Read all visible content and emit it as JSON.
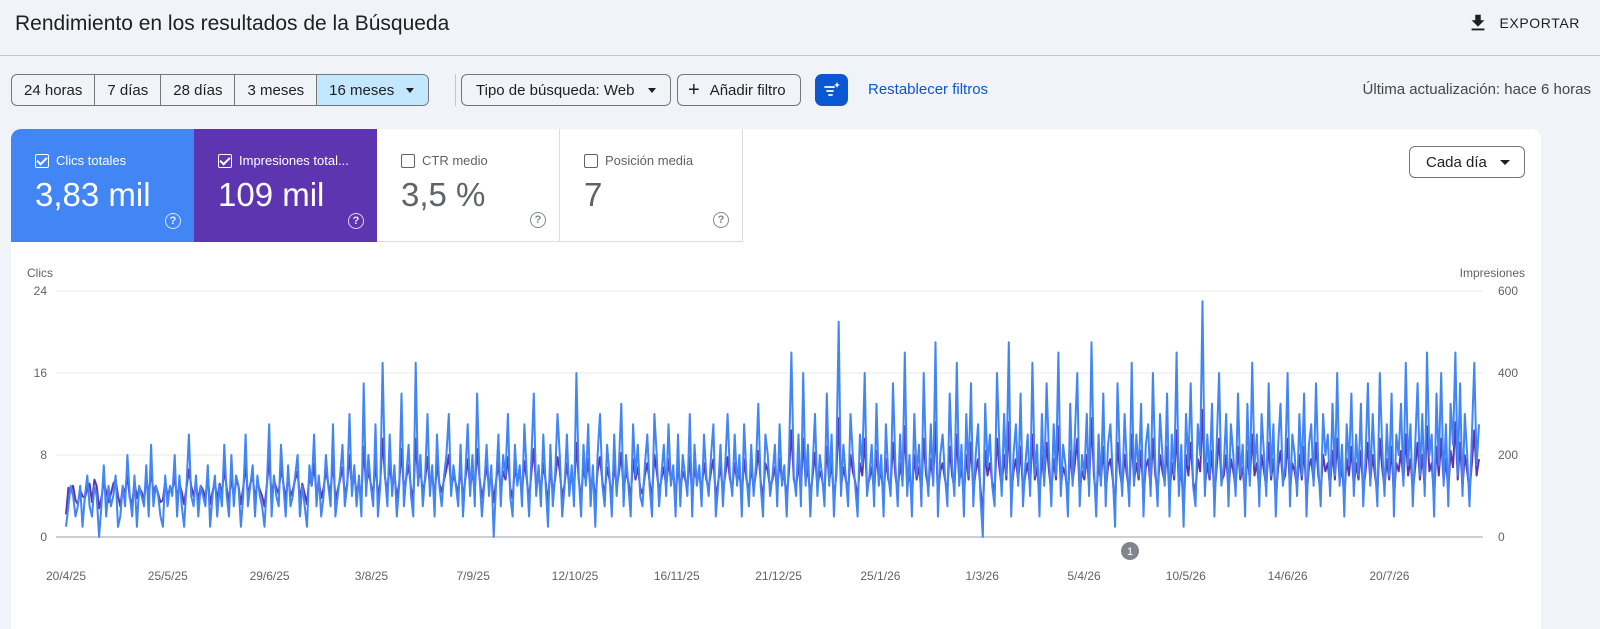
{
  "header": {
    "title": "Rendimiento en los resultados de la Búsqueda",
    "export_label": "EXPORTAR"
  },
  "toolbar": {
    "ranges": [
      "24 horas",
      "7 días",
      "28 días",
      "3 meses",
      "16 meses"
    ],
    "active_range": "16 meses",
    "search_type": "Tipo de búsqueda: Web",
    "add_filter": "Añadir filtro",
    "reset_filters": "Restablecer filtros",
    "last_update": "Última actualización: hace 6 horas"
  },
  "metrics": {
    "clicks": {
      "label": "Clics totales",
      "value": "3,83 mil",
      "checked": true,
      "color": "#4285f4"
    },
    "impressions": {
      "label": "Impresiones total...",
      "value": "109 mil",
      "checked": true,
      "color": "#5e35b1"
    },
    "ctr": {
      "label": "CTR medio",
      "value": "3,5 %",
      "checked": false
    },
    "position": {
      "label": "Posición media",
      "value": "7",
      "checked": false
    }
  },
  "frequency": {
    "label": "Cada día"
  },
  "chart_data": {
    "type": "line",
    "y_left": {
      "label": "Clics",
      "ticks": [
        "24",
        "16",
        "8",
        "0"
      ],
      "range": [
        0,
        24
      ]
    },
    "y_right": {
      "label": "Impresiones",
      "ticks": [
        "600",
        "400",
        "200",
        "0"
      ],
      "range": [
        0,
        600
      ]
    },
    "x_ticks": [
      "20/4/25",
      "25/5/25",
      "29/6/25",
      "3/8/25",
      "7/9/25",
      "12/10/25",
      "16/11/25",
      "21/12/25",
      "25/1/26",
      "1/3/26",
      "5/4/26",
      "10/5/26",
      "14/6/26",
      "20/7/26"
    ],
    "annotation": "1",
    "grid": true,
    "series": [
      {
        "name": "Clics totales",
        "axis": "left",
        "color": "#4285f4",
        "values": [
          1,
          3,
          5,
          4,
          2,
          3,
          5,
          1,
          4,
          6,
          3,
          2,
          5,
          4,
          0,
          3,
          7,
          2,
          5,
          3,
          4,
          6,
          1,
          2,
          5,
          3,
          8,
          4,
          2,
          6,
          1,
          5,
          4,
          3,
          7,
          2,
          9,
          3,
          5,
          4,
          2,
          1,
          6,
          3,
          5,
          4,
          8,
          2,
          6,
          3,
          1,
          5,
          10,
          4,
          3,
          6,
          2,
          5,
          4,
          3,
          7,
          1,
          4,
          6,
          2,
          5,
          3,
          9,
          4,
          2,
          8,
          3,
          6,
          5,
          1,
          4,
          10,
          3,
          5,
          7,
          2,
          6,
          4,
          3,
          1,
          5,
          11,
          2,
          6,
          4,
          3,
          9,
          5,
          2,
          7,
          3,
          4,
          6,
          8,
          2,
          5,
          3,
          1,
          7,
          5,
          10,
          3,
          6,
          2,
          4,
          8,
          5,
          3,
          11,
          2,
          4,
          6,
          9,
          3,
          5,
          12,
          4,
          7,
          3,
          6,
          2,
          15,
          4,
          8,
          5,
          3,
          11,
          2,
          5,
          17,
          6,
          3,
          10,
          4,
          7,
          2,
          5,
          14,
          3,
          6,
          9,
          4,
          2,
          17,
          5,
          8,
          3,
          6,
          12,
          4,
          7,
          2,
          10,
          5,
          3,
          6,
          8,
          12,
          4,
          7,
          5,
          3,
          9,
          2,
          6,
          11,
          4,
          8,
          3,
          14,
          6,
          2,
          5,
          9,
          4,
          7,
          0,
          5,
          10,
          3,
          8,
          6,
          12,
          4,
          2,
          9,
          5,
          7,
          3,
          11,
          6,
          2,
          8,
          14,
          4,
          7,
          3,
          10,
          5,
          1,
          9,
          3,
          6,
          12,
          8,
          2,
          5,
          10,
          4,
          7,
          3,
          16,
          6,
          2,
          9,
          5,
          11,
          3,
          7,
          1,
          8,
          12,
          5,
          3,
          9,
          6,
          2,
          10,
          4,
          7,
          13,
          3,
          8,
          5,
          2,
          11,
          6,
          9,
          4,
          3,
          7,
          10,
          5,
          2,
          12,
          8,
          3,
          6,
          9,
          4,
          11,
          5,
          7,
          2,
          10,
          3,
          8,
          6,
          4,
          12,
          2,
          9,
          5,
          7,
          3,
          10,
          6,
          4,
          8,
          11,
          2,
          5,
          9,
          3,
          7,
          12,
          6,
          4,
          10,
          5,
          8,
          2,
          11,
          6,
          3,
          9,
          4,
          7,
          13,
          5,
          2,
          10,
          8,
          4,
          6,
          9,
          3,
          11,
          5,
          7,
          2,
          8,
          18,
          6,
          4,
          10,
          3,
          16,
          5,
          9,
          2,
          7,
          12,
          4,
          8,
          6,
          3,
          14,
          5,
          10,
          2,
          7,
          21,
          4,
          9,
          6,
          3,
          12,
          8,
          5,
          2,
          10,
          7,
          16,
          4,
          6,
          9,
          3,
          13,
          5,
          8,
          2,
          11,
          6,
          4,
          15,
          7,
          3,
          10,
          5,
          18,
          4,
          8,
          2,
          12,
          6,
          9,
          3,
          16,
          7,
          4,
          11,
          5,
          19,
          2,
          8,
          10,
          6,
          3,
          14,
          7,
          4,
          17,
          5,
          9,
          2,
          12,
          6,
          15,
          3,
          8,
          11,
          4,
          0,
          13,
          7,
          10,
          5,
          3,
          16,
          9,
          4,
          12,
          6,
          19,
          2,
          8,
          11,
          5,
          14,
          3,
          7,
          10,
          4,
          17,
          6,
          9,
          2,
          12,
          5,
          15,
          8,
          3,
          11,
          6,
          18,
          4,
          9,
          7,
          2,
          13,
          5,
          10,
          16,
          3,
          8,
          6,
          12,
          4,
          19,
          7,
          2,
          10,
          5,
          14,
          3,
          9,
          11,
          6,
          1,
          15,
          8,
          4,
          12,
          7,
          3,
          17,
          5,
          10,
          6,
          13,
          2,
          9,
          11,
          4,
          16,
          7,
          3,
          12,
          8,
          5,
          14,
          2,
          10,
          6,
          18,
          4,
          9,
          1,
          12,
          7,
          15,
          5,
          3,
          11,
          8,
          23,
          4,
          10,
          6,
          13,
          2,
          9,
          16,
          5,
          7,
          12,
          3,
          11,
          8,
          4,
          14,
          6,
          9,
          2,
          13,
          5,
          17,
          7,
          10,
          3,
          12,
          8,
          4,
          15,
          6,
          11,
          2,
          9,
          13,
          5,
          7,
          16,
          3,
          10,
          8,
          4,
          12,
          6,
          14,
          2,
          9,
          11,
          5,
          15,
          7,
          3,
          12,
          8,
          10,
          4,
          13,
          6,
          16,
          5,
          9,
          2,
          11,
          7,
          14,
          4,
          10,
          6,
          13,
          3,
          8,
          15,
          5,
          12,
          7,
          3,
          16,
          9,
          4,
          11,
          6,
          14,
          2,
          10,
          8,
          13,
          5,
          17,
          7,
          11,
          3,
          9,
          15,
          6,
          12,
          4,
          18,
          8,
          10,
          2,
          14,
          7,
          16,
          5,
          11,
          3,
          13,
          9,
          18,
          6,
          15,
          4,
          12,
          8,
          3,
          10,
          17,
          7,
          11
        ]
      },
      {
        "name": "Impresiones totales",
        "axis": "right",
        "color": "#5e35b1",
        "values": [
          55,
          120,
          110,
          125,
          90,
          80,
          115,
          100,
          95,
          120,
          130,
          85,
          140,
          125,
          70,
          95,
          135,
          110,
          85,
          105,
          130,
          140,
          100,
          75,
          120,
          110,
          150,
          95,
          80,
          135,
          95,
          120,
          110,
          90,
          140,
          100,
          160,
          110,
          125,
          105,
          85,
          90,
          135,
          100,
          120,
          115,
          145,
          95,
          130,
          110,
          80,
          120,
          165,
          125,
          100,
          130,
          90,
          125,
          115,
          95,
          150,
          80,
          110,
          135,
          90,
          130,
          105,
          165,
          120,
          85,
          150,
          95,
          135,
          125,
          80,
          120,
          175,
          100,
          130,
          150,
          90,
          135,
          115,
          100,
          75,
          125,
          190,
          95,
          140,
          120,
          105,
          170,
          130,
          90,
          150,
          100,
          115,
          140,
          160,
          90,
          130,
          105,
          80,
          150,
          125,
          180,
          100,
          140,
          95,
          120,
          160,
          130,
          105,
          190,
          90,
          115,
          140,
          170,
          100,
          130,
          200,
          120,
          150,
          105,
          135,
          95,
          220,
          125,
          160,
          130,
          100,
          190,
          95,
          135,
          240,
          145,
          110,
          180,
          120,
          155,
          95,
          130,
          215,
          110,
          145,
          175,
          120,
          90,
          240,
          135,
          165,
          110,
          140,
          195,
          120,
          155,
          95,
          180,
          130,
          110,
          140,
          165,
          200,
          120,
          150,
          130,
          105,
          170,
          95,
          140,
          190,
          120,
          160,
          110,
          215,
          145,
          95,
          130,
          175,
          120,
          150,
          85,
          135,
          180,
          110,
          160,
          140,
          195,
          120,
          95,
          170,
          135,
          155,
          105,
          185,
          140,
          90,
          160,
          215,
          120,
          150,
          110,
          180,
          135,
          80,
          170,
          110,
          140,
          195,
          160,
          95,
          130,
          180,
          120,
          150,
          110,
          230,
          140,
          95,
          170,
          135,
          190,
          110,
          155,
          85,
          160,
          195,
          135,
          105,
          170,
          140,
          95,
          180,
          120,
          155,
          205,
          110,
          160,
          135,
          95,
          190,
          140,
          170,
          120,
          105,
          150,
          180,
          135,
          95,
          200,
          160,
          110,
          140,
          170,
          120,
          190,
          135,
          155,
          95,
          180,
          110,
          160,
          140,
          120,
          195,
          95,
          170,
          135,
          155,
          110,
          180,
          140,
          120,
          160,
          190,
          95,
          135,
          170,
          110,
          150,
          195,
          140,
          120,
          180,
          135,
          160,
          95,
          190,
          140,
          110,
          170,
          120,
          155,
          210,
          135,
          95,
          180,
          160,
          120,
          140,
          170,
          110,
          190,
          135,
          150,
          95,
          160,
          260,
          140,
          120,
          180,
          110,
          240,
          135,
          170,
          95,
          150,
          205,
          120,
          160,
          140,
          110,
          220,
          135,
          180,
          95,
          150,
          290,
          120,
          170,
          140,
          110,
          200,
          160,
          135,
          95,
          180,
          150,
          240,
          120,
          140,
          170,
          110,
          210,
          135,
          160,
          95,
          190,
          140,
          120,
          230,
          150,
          110,
          180,
          135,
          270,
          120,
          160,
          95,
          200,
          140,
          170,
          110,
          240,
          150,
          120,
          190,
          135,
          280,
          95,
          160,
          180,
          140,
          110,
          220,
          150,
          120,
          250,
          135,
          170,
          95,
          200,
          140,
          230,
          110,
          160,
          190,
          120,
          60,
          210,
          150,
          180,
          135,
          110,
          240,
          170,
          120,
          200,
          140,
          280,
          95,
          160,
          190,
          135,
          220,
          110,
          150,
          180,
          120,
          250,
          140,
          170,
          95,
          200,
          135,
          230,
          160,
          110,
          190,
          140,
          270,
          120,
          170,
          150,
          95,
          210,
          135,
          180,
          240,
          110,
          160,
          140,
          200,
          120,
          290,
          150,
          95,
          180,
          135,
          220,
          110,
          170,
          190,
          140,
          70,
          230,
          160,
          120,
          200,
          150,
          110,
          250,
          135,
          180,
          140,
          210,
          95,
          170,
          190,
          120,
          240,
          150,
          110,
          200,
          160,
          135,
          220,
          95,
          180,
          140,
          260,
          120,
          170,
          60,
          200,
          150,
          230,
          135,
          110,
          190,
          160,
          310,
          120,
          180,
          140,
          210,
          95,
          170,
          240,
          135,
          150,
          200,
          110,
          190,
          160,
          120,
          220,
          140,
          170,
          95,
          210,
          135,
          250,
          150,
          180,
          110,
          200,
          160,
          120,
          230,
          140,
          190,
          95,
          170,
          210,
          135,
          150,
          240,
          110,
          180,
          160,
          120,
          200,
          140,
          220,
          95,
          170,
          190,
          135,
          230,
          150,
          110,
          200,
          160,
          180,
          120,
          210,
          140,
          240,
          135,
          170,
          95,
          190,
          150,
          220,
          120,
          180,
          140,
          210,
          110,
          160,
          230,
          135,
          200,
          150,
          110,
          240,
          170,
          120,
          190,
          140,
          220,
          95,
          180,
          160,
          210,
          135,
          250,
          150,
          190,
          110,
          170,
          230,
          140,
          200,
          120,
          270,
          160,
          180,
          95,
          220,
          150,
          240,
          135,
          190,
          110,
          210,
          170,
          280,
          140,
          230,
          120,
          200,
          160,
          110,
          180,
          260,
          150,
          190
        ]
      }
    ]
  }
}
